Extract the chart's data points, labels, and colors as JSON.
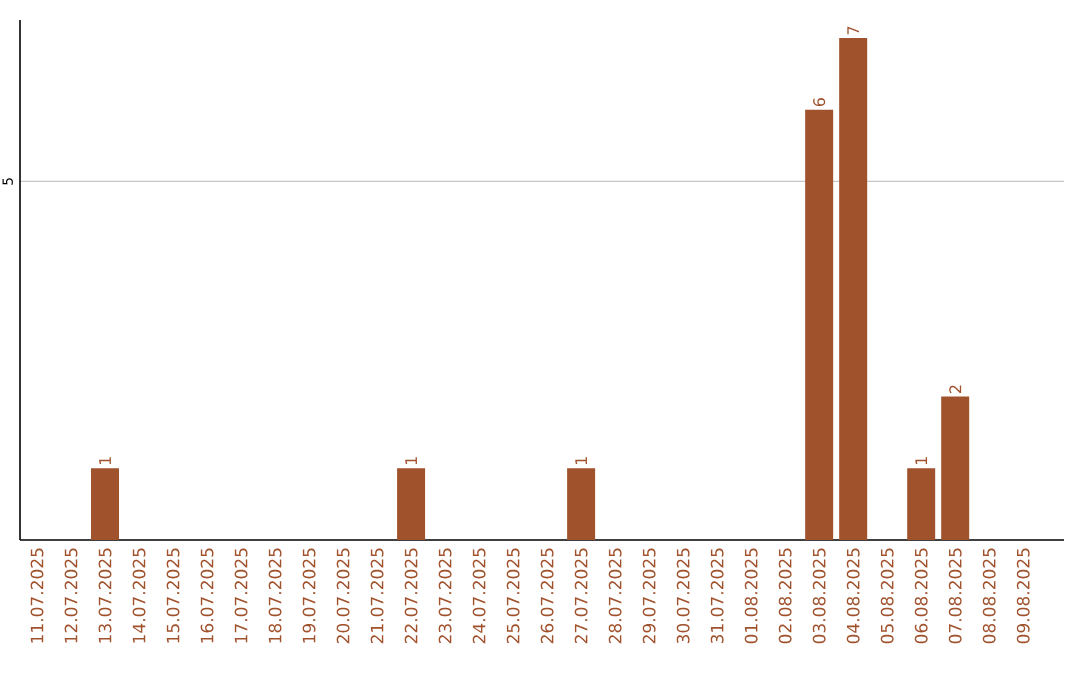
{
  "chart_data": {
    "type": "bar",
    "categories": [
      "11.07.2025",
      "12.07.2025",
      "13.07.2025",
      "14.07.2025",
      "15.07.2025",
      "16.07.2025",
      "17.07.2025",
      "18.07.2025",
      "19.07.2025",
      "20.07.2025",
      "21.07.2025",
      "22.07.2025",
      "23.07.2025",
      "24.07.2025",
      "25.07.2025",
      "26.07.2025",
      "27.07.2025",
      "28.07.2025",
      "29.07.2025",
      "30.07.2025",
      "31.07.2025",
      "01.08.2025",
      "02.08.2025",
      "03.08.2025",
      "04.08.2025",
      "05.08.2025",
      "06.08.2025",
      "07.08.2025",
      "08.08.2025",
      "09.08.2025"
    ],
    "values": [
      0,
      0,
      1,
      0,
      0,
      0,
      0,
      0,
      0,
      0,
      0,
      1,
      0,
      0,
      0,
      0,
      1,
      0,
      0,
      0,
      0,
      0,
      0,
      6,
      7,
      0,
      1,
      2,
      0,
      0
    ],
    "value_labels": [
      null,
      null,
      "1",
      null,
      null,
      null,
      null,
      null,
      null,
      null,
      null,
      "1",
      null,
      null,
      null,
      null,
      "1",
      null,
      null,
      null,
      null,
      null,
      null,
      "6",
      "7",
      null,
      "1",
      "2",
      null,
      null
    ],
    "color": "#a0522d",
    "ylim": [
      0,
      7.25
    ],
    "yticks": [
      5
    ],
    "grid": "y"
  }
}
